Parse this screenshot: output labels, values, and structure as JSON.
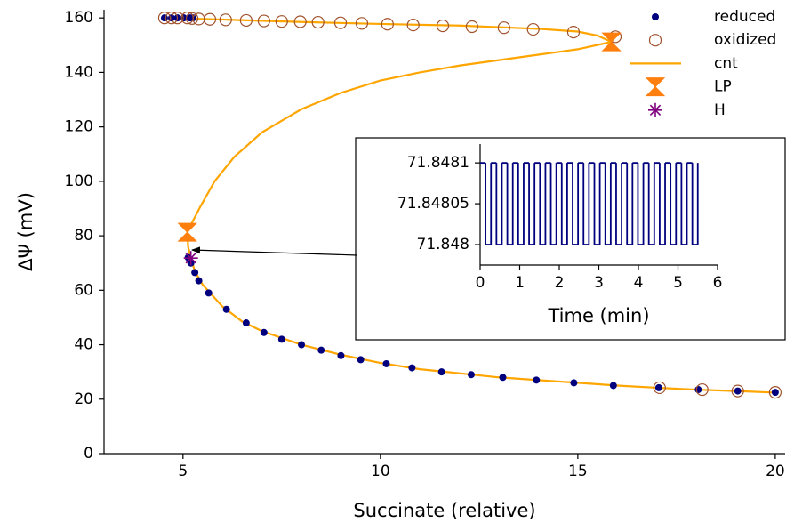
{
  "chart_data": [
    {
      "type": "scatter",
      "xlabel": "Succinate (relative)",
      "ylabel": "ΔΨ (mV)",
      "xlim": [
        3,
        20.25
      ],
      "ylim": [
        0,
        163
      ],
      "xticks": [
        5,
        10,
        15,
        20
      ],
      "yticks": [
        0,
        20,
        40,
        60,
        80,
        100,
        120,
        140,
        160
      ],
      "legend": "upper right",
      "series": [
        {
          "name": "reduced",
          "marker": "dot",
          "color": "#00007f",
          "x": [
            4.53,
            4.71,
            4.86,
            5.02,
            5.18,
            5.25,
            5.13,
            5.2,
            5.3,
            5.4,
            5.65,
            6.1,
            6.6,
            7.05,
            7.5,
            8.0,
            8.5,
            9.0,
            9.5,
            10.15,
            10.8,
            11.55,
            12.3,
            13.1,
            13.95,
            14.9,
            15.9,
            17.05,
            18.05,
            19.05,
            20
          ],
          "values": [
            160,
            160,
            160,
            160,
            160,
            160,
            72,
            70,
            66.5,
            63.5,
            59,
            53,
            48,
            44.5,
            42,
            40,
            38,
            36,
            34.5,
            33,
            31.5,
            30,
            29,
            28,
            27,
            26,
            25,
            24.2,
            23.5,
            23,
            22.5
          ]
        },
        {
          "name": "oxidized",
          "marker": "circle",
          "color": "#a0522d",
          "x": [
            4.53,
            4.71,
            4.86,
            5.11,
            5.23,
            5.4,
            5.68,
            6.08,
            6.6,
            7.05,
            7.5,
            7.97,
            8.42,
            8.99,
            9.53,
            10.18,
            10.83,
            11.58,
            12.32,
            13.13,
            13.87,
            14.89,
            15.95,
            17.07,
            18.15,
            19.05,
            20
          ],
          "values": [
            160,
            160,
            160,
            160,
            159.8,
            159.6,
            159.5,
            159.3,
            159.1,
            158.9,
            158.7,
            158.6,
            158.4,
            158.2,
            158.0,
            157.7,
            157.4,
            157.1,
            156.8,
            156.4,
            155.8,
            154.8,
            153.1,
            24.2,
            23.5,
            23,
            22.5
          ]
        },
        {
          "name": "cnt",
          "marker": "line",
          "color": "#ffa500",
          "x": [
            4.5,
            6,
            8,
            10,
            12,
            14,
            15,
            15.5,
            15.85,
            15,
            14,
            13,
            12,
            11,
            10,
            9,
            8,
            7,
            6.3,
            5.8,
            5.45,
            5.2,
            5.11,
            5.13,
            5.2,
            5.3,
            5.5,
            6,
            6.5,
            7,
            8,
            9,
            10,
            11,
            12,
            13,
            14,
            15,
            16,
            17,
            18,
            19,
            20
          ],
          "values": [
            160,
            159.4,
            158.5,
            157.8,
            157.2,
            156,
            155,
            153.5,
            151.2,
            148.5,
            146.5,
            144.5,
            142.5,
            140,
            137,
            132.5,
            126.5,
            118,
            109,
            100,
            91,
            84,
            81.3,
            76,
            71.8,
            67,
            62,
            54,
            48.5,
            45,
            40,
            36.3,
            33.3,
            31,
            29.5,
            28,
            27,
            26,
            25,
            24.2,
            23.5,
            23,
            22.4
          ]
        },
        {
          "name": "LP",
          "marker": "hourglass",
          "color": "#ff7f0e",
          "x": [
            15.85,
            5.11
          ],
          "values": [
            151.2,
            81.3
          ]
        },
        {
          "name": "H",
          "marker": "star",
          "color": "#800080",
          "x": [
            5.2
          ],
          "values": [
            71.8
          ]
        }
      ]
    },
    {
      "type": "line",
      "xlabel": "Time (min)",
      "xlim": [
        0,
        6
      ],
      "ylim": [
        71.847975,
        71.848123
      ],
      "xticks": [
        0,
        1,
        2,
        3,
        4,
        5,
        6
      ],
      "yticks": [
        71.848,
        71.84805,
        71.8481
      ],
      "step": true,
      "series": [
        {
          "color": "#00007f",
          "x": [
            0,
            0.1375,
            0.275,
            0.4125,
            0.55,
            0.6875,
            0.825,
            0.9625,
            1.1,
            1.2375,
            1.375,
            1.5125,
            1.65,
            1.7875,
            1.925,
            2.0625,
            2.2,
            2.3375,
            2.475,
            2.6125,
            2.75,
            2.8875,
            3.025,
            3.1625,
            3.3,
            3.4375,
            3.575,
            3.7125,
            3.85,
            3.9875,
            4.125,
            4.2625,
            4.4,
            4.5375,
            4.675,
            4.8125,
            4.95,
            5.0875,
            5.225,
            5.3625,
            5.5
          ],
          "values": [
            71.8481,
            71.848,
            71.8481,
            71.848,
            71.8481,
            71.848,
            71.8481,
            71.848,
            71.8481,
            71.848,
            71.8481,
            71.848,
            71.8481,
            71.848,
            71.8481,
            71.848,
            71.8481,
            71.848,
            71.8481,
            71.848,
            71.8481,
            71.848,
            71.8481,
            71.848,
            71.8481,
            71.848,
            71.8481,
            71.848,
            71.8481,
            71.848,
            71.8481,
            71.848,
            71.8481,
            71.848,
            71.8481,
            71.848,
            71.8481,
            71.848,
            71.8481,
            71.848,
            71.8481
          ]
        }
      ]
    }
  ]
}
